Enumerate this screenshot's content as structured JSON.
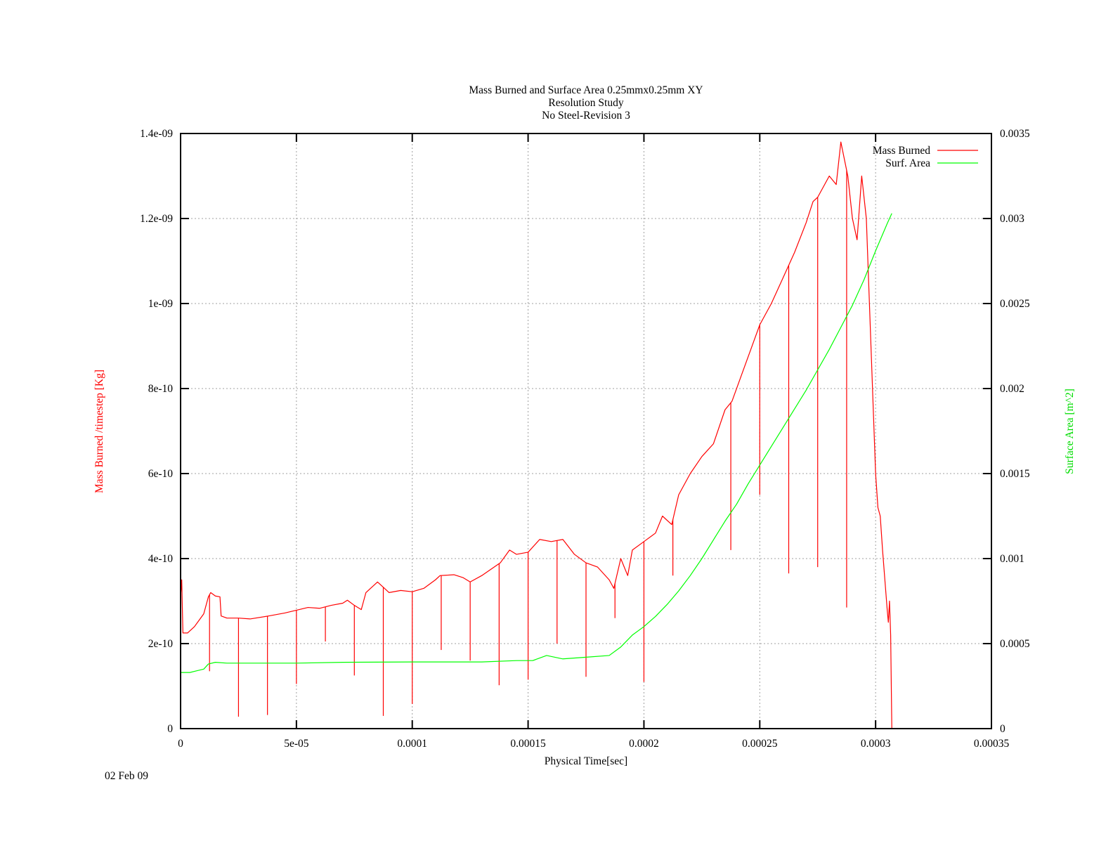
{
  "chart_data": {
    "type": "line",
    "title_lines": [
      "Mass Burned and Surface Area 0.25mmx0.25mm XY",
      "Resolution Study",
      "No Steel-Revision 3"
    ],
    "xlabel": "Physical Time[sec]",
    "ylabel": "Mass Burned /timestep  [Kg]",
    "y2label": "Surface Area [m^2]",
    "date_label": "02 Feb 09",
    "xlim": [
      0,
      0.00035
    ],
    "ylim": [
      0,
      1.4e-09
    ],
    "y2lim": [
      0,
      0.0035
    ],
    "grid": true,
    "legend_position": "top-right",
    "x_ticks": [
      {
        "value": 0,
        "label": "0"
      },
      {
        "value": 5e-05,
        "label": "5e-05"
      },
      {
        "value": 0.0001,
        "label": "0.0001"
      },
      {
        "value": 0.00015,
        "label": "0.00015"
      },
      {
        "value": 0.0002,
        "label": "0.0002"
      },
      {
        "value": 0.00025,
        "label": "0.00025"
      },
      {
        "value": 0.0003,
        "label": "0.0003"
      },
      {
        "value": 0.00035,
        "label": "0.00035"
      }
    ],
    "y_ticks": [
      {
        "value": 0,
        "label": "0"
      },
      {
        "value": 2e-10,
        "label": "2e-10"
      },
      {
        "value": 4e-10,
        "label": "4e-10"
      },
      {
        "value": 6e-10,
        "label": "6e-10"
      },
      {
        "value": 8e-10,
        "label": "8e-10"
      },
      {
        "value": 1e-09,
        "label": "1e-09"
      },
      {
        "value": 1.2e-09,
        "label": "1.2e-09"
      },
      {
        "value": 1.4e-09,
        "label": "1.4e-09"
      }
    ],
    "y2_ticks": [
      {
        "value": 0,
        "label": "0"
      },
      {
        "value": 0.0005,
        "label": "0.0005"
      },
      {
        "value": 0.001,
        "label": "0.001"
      },
      {
        "value": 0.0015,
        "label": "0.0015"
      },
      {
        "value": 0.002,
        "label": "0.002"
      },
      {
        "value": 0.0025,
        "label": "0.0025"
      },
      {
        "value": 0.003,
        "label": "0.003"
      },
      {
        "value": 0.0035,
        "label": "0.0035"
      }
    ],
    "series": [
      {
        "name": "Mass Burned",
        "color": "#ff0000",
        "axis": "y",
        "points": [
          [
            0,
            3.1e-10
          ],
          [
            5e-07,
            3.5e-10
          ],
          [
            1e-06,
            2.25e-10
          ],
          [
            3e-06,
            2.25e-10
          ],
          [
            6e-06,
            2.4e-10
          ],
          [
            1e-05,
            2.7e-10
          ],
          [
            1.2e-05,
            3.1e-10
          ],
          [
            1.3e-05,
            3.2e-10
          ],
          [
            1.5e-05,
            3.12e-10
          ],
          [
            1.7e-05,
            3.1e-10
          ],
          [
            1.75e-05,
            2.65e-10
          ],
          [
            2e-05,
            2.6e-10
          ],
          [
            2.5e-05,
            2.6e-10
          ],
          [
            3e-05,
            2.58e-10
          ],
          [
            3.8e-05,
            2.65e-10
          ],
          [
            4.5e-05,
            2.72e-10
          ],
          [
            5.5e-05,
            2.85e-10
          ],
          [
            6e-05,
            2.83e-10
          ],
          [
            6.5e-05,
            2.9e-10
          ],
          [
            7e-05,
            2.95e-10
          ],
          [
            7.2e-05,
            3.02e-10
          ],
          [
            7.5e-05,
            2.9e-10
          ],
          [
            7.8e-05,
            2.8e-10
          ],
          [
            8e-05,
            3.2e-10
          ],
          [
            8.5e-05,
            3.45e-10
          ],
          [
            8.8e-05,
            3.3e-10
          ],
          [
            9e-05,
            3.2e-10
          ],
          [
            9.5e-05,
            3.25e-10
          ],
          [
            0.0001,
            3.22e-10
          ],
          [
            0.000105,
            3.3e-10
          ],
          [
            0.00011,
            3.5e-10
          ],
          [
            0.000112,
            3.6e-10
          ],
          [
            0.000118,
            3.62e-10
          ],
          [
            0.000122,
            3.55e-10
          ],
          [
            0.000125,
            3.45e-10
          ],
          [
            0.00013,
            3.6e-10
          ],
          [
            0.000138,
            3.9e-10
          ],
          [
            0.000142,
            4.2e-10
          ],
          [
            0.000145,
            4.1e-10
          ],
          [
            0.00015,
            4.15e-10
          ],
          [
            0.000155,
            4.45e-10
          ],
          [
            0.00016,
            4.4e-10
          ],
          [
            0.000165,
            4.45e-10
          ],
          [
            0.00017,
            4.1e-10
          ],
          [
            0.000175,
            3.9e-10
          ],
          [
            0.00018,
            3.8e-10
          ],
          [
            0.000185,
            3.5e-10
          ],
          [
            0.000187,
            3.3e-10
          ],
          [
            0.00019,
            4e-10
          ],
          [
            0.000193,
            3.6e-10
          ],
          [
            0.000195,
            4.2e-10
          ],
          [
            0.0002,
            4.4e-10
          ],
          [
            0.000205,
            4.6e-10
          ],
          [
            0.000208,
            5e-10
          ],
          [
            0.000212,
            4.8e-10
          ],
          [
            0.000215,
            5.5e-10
          ],
          [
            0.00022,
            6e-10
          ],
          [
            0.000225,
            6.4e-10
          ],
          [
            0.00023,
            6.7e-10
          ],
          [
            0.000235,
            7.5e-10
          ],
          [
            0.000238,
            7.7e-10
          ],
          [
            0.000242,
            8.3e-10
          ],
          [
            0.000246,
            8.9e-10
          ],
          [
            0.00025,
            9.5e-10
          ],
          [
            0.000255,
            1e-09
          ],
          [
            0.00026,
            1.06e-09
          ],
          [
            0.000265,
            1.12e-09
          ],
          [
            0.00027,
            1.19e-09
          ],
          [
            0.000273,
            1.24e-09
          ],
          [
            0.000275,
            1.25e-09
          ],
          [
            0.000278,
            1.28e-09
          ],
          [
            0.00028,
            1.3e-09
          ],
          [
            0.000283,
            1.28e-09
          ],
          [
            0.000285,
            1.38e-09
          ],
          [
            0.000288,
            1.3e-09
          ],
          [
            0.00029,
            1.2e-09
          ],
          [
            0.000292,
            1.15e-09
          ],
          [
            0.000294,
            1.3e-09
          ],
          [
            0.000296,
            1.2e-09
          ],
          [
            0.000298,
            9e-10
          ],
          [
            0.0003,
            6e-10
          ],
          [
            0.000301,
            5.2e-10
          ],
          [
            0.000302,
            5e-10
          ],
          [
            0.000303,
            4.2e-10
          ],
          [
            0.000304,
            3.5e-10
          ],
          [
            0.000305,
            2.8e-10
          ],
          [
            0.0003055,
            2.5e-10
          ],
          [
            0.000306,
            3e-10
          ],
          [
            0.0003065,
            2.2e-10
          ],
          [
            0.000307,
            0
          ]
        ],
        "spikes": [
          [
            1.25e-05,
            1.35e-10
          ],
          [
            2.5e-05,
            2.8e-11
          ],
          [
            3.75e-05,
            3.2e-11
          ],
          [
            5e-05,
            1.05e-10
          ],
          [
            6.25e-05,
            2.05e-10
          ],
          [
            7.5e-05,
            1.25e-10
          ],
          [
            8.75e-05,
            3e-11
          ],
          [
            0.0001,
            5.8e-11
          ],
          [
            0.0001125,
            1.85e-10
          ],
          [
            0.000125,
            1.6e-10
          ],
          [
            0.0001375,
            1.02e-10
          ],
          [
            0.00015,
            1.15e-10
          ],
          [
            0.0001625,
            2e-10
          ],
          [
            0.000175,
            1.22e-10
          ],
          [
            0.0001875,
            2.6e-10
          ],
          [
            0.0002,
            1.1e-10
          ],
          [
            0.0002125,
            3.6e-10
          ],
          [
            0.0002375,
            4.2e-10
          ],
          [
            0.00025,
            5.5e-10
          ],
          [
            0.0002625,
            3.65e-10
          ],
          [
            0.000275,
            3.8e-10
          ],
          [
            0.0002875,
            2.85e-10
          ]
        ]
      },
      {
        "name": "Surf. Area",
        "color": "#00ff00",
        "axis": "y2",
        "points": [
          [
            0,
            0.00033
          ],
          [
            4e-06,
            0.00033
          ],
          [
            7e-06,
            0.00034
          ],
          [
            1e-05,
            0.00035
          ],
          [
            1.2e-05,
            0.00038
          ],
          [
            1.5e-05,
            0.00039
          ],
          [
            2e-05,
            0.000385
          ],
          [
            3e-05,
            0.000385
          ],
          [
            5e-05,
            0.000385
          ],
          [
            7e-05,
            0.00039
          ],
          [
            0.0001,
            0.000392
          ],
          [
            0.00013,
            0.000392
          ],
          [
            0.000145,
            0.0004
          ],
          [
            0.000152,
            0.0004
          ],
          [
            0.000158,
            0.00043
          ],
          [
            0.000165,
            0.00041
          ],
          [
            0.000175,
            0.00042
          ],
          [
            0.000185,
            0.00043
          ],
          [
            0.00019,
            0.00048
          ],
          [
            0.000195,
            0.00055
          ],
          [
            0.0002,
            0.0006
          ],
          [
            0.000205,
            0.00066
          ],
          [
            0.00021,
            0.00073
          ],
          [
            0.000215,
            0.00081
          ],
          [
            0.00022,
            0.0009
          ],
          [
            0.000225,
            0.001
          ],
          [
            0.00023,
            0.00111
          ],
          [
            0.000235,
            0.00122
          ],
          [
            0.00024,
            0.00132
          ],
          [
            0.000245,
            0.00144
          ],
          [
            0.00025,
            0.00155
          ],
          [
            0.000255,
            0.00166
          ],
          [
            0.00026,
            0.00177
          ],
          [
            0.000265,
            0.00188
          ],
          [
            0.00027,
            0.00199
          ],
          [
            0.000275,
            0.00211
          ],
          [
            0.00028,
            0.00223
          ],
          [
            0.000285,
            0.00236
          ],
          [
            0.00029,
            0.00249
          ],
          [
            0.000295,
            0.00264
          ],
          [
            0.0003,
            0.00281
          ],
          [
            0.000305,
            0.00297
          ],
          [
            0.000307,
            0.00303
          ]
        ]
      }
    ]
  }
}
